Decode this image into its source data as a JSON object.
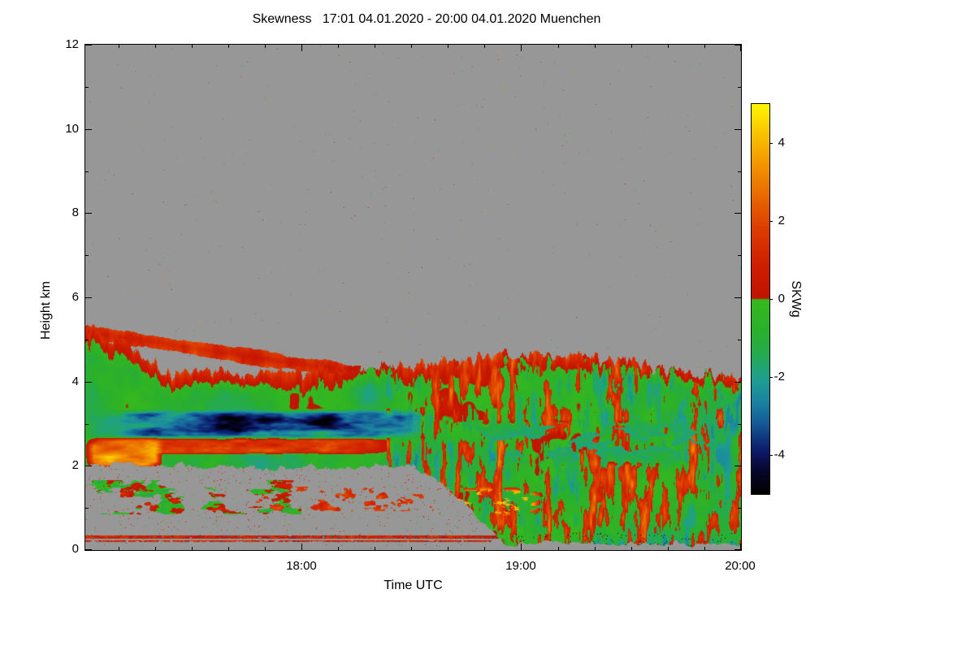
{
  "title": "Skewness   17:01 04.01.2020 - 20:00 04.01.2020 Muenchen",
  "chart_data": {
    "type": "heatmap",
    "title": "Skewness   17:01 04.01.2020 - 20:00 04.01.2020 Muenchen",
    "site": "Muenchen",
    "time_start": "17:01 04.01.2020",
    "time_end": "20:00 04.01.2020",
    "xlabel": "Time UTC",
    "ylabel": "Height km",
    "x_total_minutes": 179,
    "x_ticks": [
      {
        "label": "18:00",
        "minutes": 59
      },
      {
        "label": "19:00",
        "minutes": 119
      },
      {
        "label": "20:00",
        "minutes": 179
      }
    ],
    "x_minor_every_minutes": 10,
    "y_range": [
      0,
      12
    ],
    "y_ticks": [
      0,
      2,
      4,
      6,
      8,
      10,
      12
    ],
    "y_minor_ticks": [
      1,
      3,
      5,
      7,
      9,
      11
    ],
    "no_data_color": "#979797",
    "colorbar": {
      "label": "SKWg",
      "range": [
        -5,
        5
      ],
      "ticks": [
        4,
        2,
        0,
        -2,
        -4
      ],
      "stops": [
        [
          -5.0,
          "#000000"
        ],
        [
          -4.4,
          "#06062e"
        ],
        [
          -3.9,
          "#0c1a6a"
        ],
        [
          -3.2,
          "#155a96"
        ],
        [
          -2.6,
          "#1b86a0"
        ],
        [
          -2.0,
          "#1fa08c"
        ],
        [
          -1.4,
          "#25aa4f"
        ],
        [
          -0.8,
          "#2bb02b"
        ],
        [
          -0.02,
          "#35b81e"
        ],
        [
          0.02,
          "#c01400"
        ],
        [
          0.8,
          "#cd1d00"
        ],
        [
          1.8,
          "#dc3c00"
        ],
        [
          2.6,
          "#e86600"
        ],
        [
          3.4,
          "#f29200"
        ],
        [
          4.2,
          "#f9c000"
        ],
        [
          4.7,
          "#fde400"
        ],
        [
          5.0,
          "#fff400"
        ]
      ]
    },
    "description": "Doppler-lidar/radar skewness (SKWg) time-height plot. No-signal background is gray with sparse colored speckles. A cloud/aerosol layer occupies heights below about 5.3 km at 17:01, its top descending to about 4.2 km by 18:10, then a spiky 4.2-4.7 km top until 20:00. Interior is mostly negative skewness (green) with red positive-skew rims and vertical red striations after 18:30. A strongly negative (teal/dark blue) band lies near 2.6-3.3 km from 17:01 to about 18:35, a red layer near 2.3-2.7 km, an orange/yellow patch near 2-2.7 km at the left edge, bright yellow speckles near 1-1.5 km around 18:40-19:00, thin red lines near 0.2-0.3 km, and data reaching the surface after about 18:40.",
    "features": {
      "speckle_density": 0.0012,
      "base_value": -0.9,
      "base_amp": 1.6,
      "rim_depth_km": 0.45,
      "rim_strength": 2.4,
      "striation_u0": 0.46,
      "cloud": {
        "top_profile": [
          [
            0,
            5.3
          ],
          [
            0.06,
            4.9
          ],
          [
            0.12,
            4.22
          ],
          [
            0.4,
            4.2
          ],
          [
            0.52,
            4.35
          ],
          [
            0.64,
            4.62
          ],
          [
            0.76,
            4.55
          ],
          [
            0.88,
            4.3
          ],
          [
            1,
            3.97
          ]
        ],
        "top_spike_amp": 0.38,
        "bottom_profile": [
          [
            0,
            2.05
          ],
          [
            0.3,
            1.95
          ],
          [
            0.5,
            2.0
          ],
          [
            0.56,
            1.35
          ],
          [
            0.64,
            0.16
          ],
          [
            1,
            0.12
          ]
        ],
        "upper_band": {
          "u_end": 0.42,
          "c0": 5.18,
          "slope": -2.35,
          "half_width": 0.17
        }
      },
      "bands": [
        {
          "name": "red-layer-left",
          "u0": 0.02,
          "u1": 0.48,
          "h0": 2.25,
          "h1": 2.75,
          "mode": "set",
          "base": 1.5,
          "amp": 1.3,
          "su": 38,
          "sh": 8,
          "seed": 21
        },
        {
          "name": "blue-band",
          "u0": 0.0,
          "u1": 0.54,
          "h0": 2.6,
          "h1": 3.35,
          "mode": "set",
          "base": -2.7,
          "amp": 1.9,
          "su": 22,
          "sh": 5,
          "seed": 22
        },
        {
          "name": "blue-core",
          "u0": 0.16,
          "u1": 0.42,
          "h0": 2.78,
          "h1": 3.22,
          "mode": "add",
          "base": -1.3,
          "amp": 0.7,
          "su": 30,
          "sh": 6,
          "seed": 23
        },
        {
          "name": "orange-patch-left",
          "u0": 0.0,
          "u1": 0.12,
          "h0": 1.9,
          "h1": 2.7,
          "mode": "set",
          "base": 3.1,
          "amp": 1.7,
          "su": 26,
          "sh": 5,
          "seed": 24
        },
        {
          "name": "teal-patches-right",
          "u0": 0.55,
          "u1": 0.99,
          "h0": 2.0,
          "h1": 3.1,
          "mask": 0.52,
          "mode": "set",
          "base": -1.9,
          "amp": 1.3,
          "su": 26,
          "sh": 3.2,
          "seed": 25
        },
        {
          "name": "yellow-cluster",
          "u0": 0.52,
          "u1": 0.7,
          "h0": 0.8,
          "h1": 1.5,
          "mask": 0.6,
          "mode": "set",
          "base": 3.6,
          "amp": 1.3,
          "su": 70,
          "sh": 9,
          "seed": 26
        }
      ],
      "lines": [
        {
          "name": "red-line-030km",
          "u0": 0.0,
          "u1": 0.66,
          "h0": 0.27,
          "h1": 0.34,
          "gap": 0.18,
          "base": 1.1,
          "seed": 41
        },
        {
          "name": "red-line-022km",
          "u0": 0.0,
          "u1": 0.62,
          "h0": 0.19,
          "h1": 0.24,
          "gap": 0.34,
          "base": 1.0,
          "seed": 42
        }
      ],
      "patches": [
        {
          "name": "left-low-patch",
          "u0": 0.01,
          "u1": 0.33,
          "h0": 0.85,
          "h1": 1.65,
          "mask": 0.56,
          "base": -0.2,
          "amp": 2.2,
          "su": 30,
          "sh": 5,
          "seed": 43
        },
        {
          "name": "mid-red-streaks",
          "u0": 0.26,
          "u1": 0.56,
          "h0": 0.92,
          "h1": 1.5,
          "mask": 0.6,
          "base": 1.5,
          "amp": 1.2,
          "su": 55,
          "sh": 7,
          "seed": 44
        }
      ]
    }
  }
}
